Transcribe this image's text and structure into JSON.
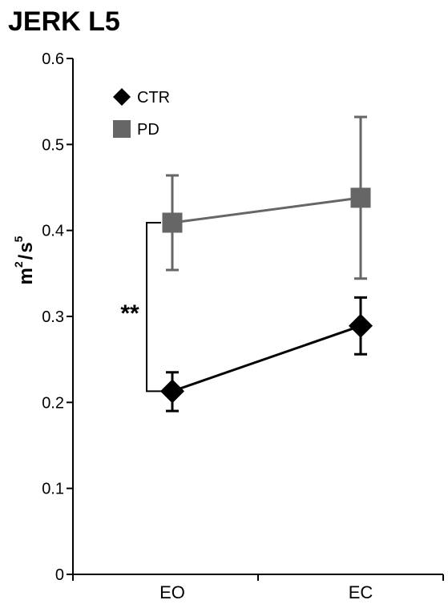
{
  "chart_data": {
    "type": "line",
    "title": "JERK L5",
    "ylabel": {
      "base1": "m",
      "exp1": "2",
      "sep": "/",
      "base2": "s",
      "exp2": "5"
    },
    "categories": [
      "EO",
      "EC"
    ],
    "ylim": [
      0,
      0.6
    ],
    "yticks": [
      {
        "value": 0,
        "label": "0"
      },
      {
        "value": 0.1,
        "label": "0.1"
      },
      {
        "value": 0.2,
        "label": "0.2"
      },
      {
        "value": 0.3,
        "label": "0.3"
      },
      {
        "value": 0.4,
        "label": "0.4"
      },
      {
        "value": 0.5,
        "label": "0.5"
      },
      {
        "value": 0.6,
        "label": "0.6"
      }
    ],
    "series": [
      {
        "name": "CTR",
        "marker": "diamond",
        "color": "#000000",
        "values": [
          0.213,
          0.289
        ],
        "err_low": [
          0.19,
          0.256
        ],
        "err_high": [
          0.235,
          0.322
        ]
      },
      {
        "name": "PD",
        "marker": "square",
        "color": "#666666",
        "values": [
          0.409,
          0.438
        ],
        "err_low": [
          0.354,
          0.344
        ],
        "err_high": [
          0.464,
          0.532
        ]
      }
    ],
    "legend_position": "top-left",
    "annotations": [
      {
        "type": "significance",
        "label": "**",
        "category": "EO",
        "from": 0.213,
        "to": 0.409
      }
    ],
    "grid": false
  }
}
